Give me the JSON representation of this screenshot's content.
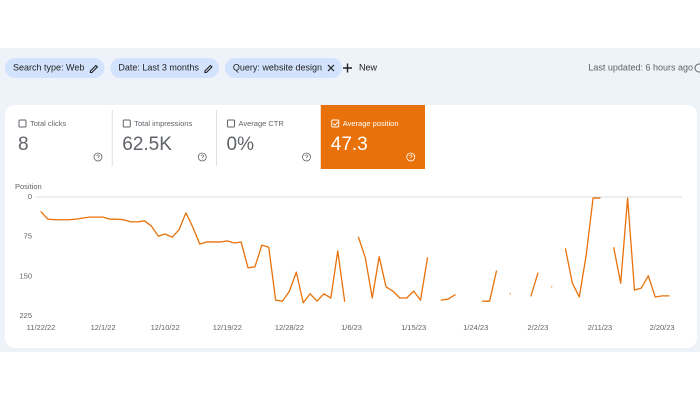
{
  "filters": [
    "Search type: Web",
    "Date: Last 3 months",
    "Query: website design"
  ],
  "new_button": "New",
  "last_updated": "Last updated: 6 hours ago",
  "metrics": [
    {
      "label": "Total clicks",
      "value": "8",
      "selected": false
    },
    {
      "label": "Total impressions",
      "value": "62.5K",
      "selected": false
    },
    {
      "label": "Average CTR",
      "value": "0%",
      "selected": false
    },
    {
      "label": "Average position",
      "value": "47.3",
      "selected": true
    }
  ],
  "chart_data": {
    "type": "line",
    "y_label": "Position",
    "x": [
      "11/22/22",
      "11/23/22",
      "11/24/22",
      "11/25/22",
      "11/26/22",
      "11/27/22",
      "11/28/22",
      "11/29/22",
      "11/30/22",
      "12/1/22",
      "12/2/22",
      "12/3/22",
      "12/4/22",
      "12/5/22",
      "12/6/22",
      "12/7/22",
      "12/8/22",
      "12/9/22",
      "12/10/22",
      "12/11/22",
      "12/12/22",
      "12/13/22",
      "12/14/22",
      "12/15/22",
      "12/16/22",
      "12/17/22",
      "12/18/22",
      "12/19/22",
      "12/20/22",
      "12/21/22",
      "12/22/22",
      "12/23/22",
      "12/24/22",
      "12/25/22",
      "12/26/22",
      "12/27/22",
      "12/28/22",
      "12/29/22",
      "12/30/22",
      "12/31/22",
      "1/1/23",
      "1/2/23",
      "1/3/23",
      "1/4/23",
      "1/5/23",
      "1/6/23",
      "1/7/23",
      "1/8/23",
      "1/9/23",
      "1/10/23",
      "1/11/23",
      "1/12/23",
      "1/13/23",
      "1/14/23",
      "1/15/23",
      "1/16/23",
      "1/17/23",
      "1/18/23",
      "1/19/23",
      "1/20/23",
      "1/21/23",
      "1/22/23",
      "1/23/23",
      "1/24/23",
      "1/25/23",
      "1/26/23",
      "1/27/23",
      "1/28/23",
      "1/29/23",
      "1/30/23",
      "1/31/23",
      "2/1/23",
      "2/2/23",
      "2/3/23",
      "2/4/23",
      "2/5/23",
      "2/6/23",
      "2/7/23",
      "2/8/23",
      "2/9/23",
      "2/10/23",
      "2/11/23",
      "2/12/23",
      "2/13/23",
      "2/14/23",
      "2/15/23",
      "2/16/23",
      "2/17/23",
      "2/18/23",
      "2/19/23",
      "2/20/23",
      "2/21/23"
    ],
    "values": [
      28,
      42,
      43,
      43,
      43,
      42,
      40,
      38,
      38,
      38,
      42,
      42,
      43,
      47,
      47,
      45,
      55,
      74,
      70,
      76,
      62,
      30,
      57,
      89,
      85,
      85,
      85,
      83,
      87,
      85,
      134,
      132,
      91,
      95,
      195,
      197,
      178,
      142,
      200,
      183,
      197,
      183,
      191,
      102,
      197,
      null,
      76,
      115,
      191,
      113,
      170,
      178,
      191,
      191,
      178,
      195,
      115,
      null,
      195,
      193,
      185,
      null,
      null,
      null,
      197,
      197,
      140,
      null,
      183,
      null,
      null,
      187,
      144,
      null,
      170,
      null,
      98,
      163,
      189,
      110,
      2,
      2,
      null,
      96,
      163,
      2,
      176,
      172,
      149,
      189,
      187,
      187
    ],
    "color": "#e8710a",
    "xlim": [
      "11/22/22",
      "2/21/23"
    ],
    "xticks": [
      "11/22/22",
      "12/1/22",
      "12/10/22",
      "12/19/22",
      "12/28/22",
      "1/6/23",
      "1/15/23",
      "1/24/23",
      "2/2/23",
      "2/11/23",
      "2/20/23"
    ],
    "ylim": [
      0,
      225
    ],
    "y_reversed": true,
    "yticks": [
      0,
      75,
      150,
      225
    ],
    "grid": false
  }
}
